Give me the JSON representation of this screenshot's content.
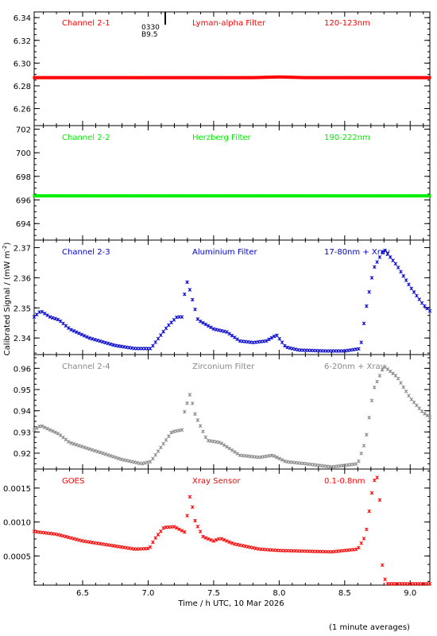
{
  "figure": {
    "ylabel": "Calibrated Signal / (mW m",
    "ylabel_sup": "-2",
    "ylabel_end": ")",
    "xlabel": "Time / h UTC, 10 Mar 2026",
    "footnote": "(1 minute averages)",
    "xlim": [
      6.13,
      9.15
    ],
    "xticks": [
      6.5,
      7.0,
      7.5,
      8.0,
      8.5,
      9.0
    ],
    "xtick_labels": [
      "6.5",
      "7.0",
      "7.5",
      "8.0",
      "8.5",
      "9.0"
    ],
    "marker_annotation": {
      "x": 7.15,
      "line1": "0330",
      "line2": "B9.5"
    }
  },
  "chart_data": [
    {
      "type": "scatter",
      "channel_label": "Channel 2-1",
      "filter_label": "Lyman-alpha Filter",
      "band_label": "120-123nm",
      "color": "#ff0000",
      "ylim": [
        6.245,
        6.345
      ],
      "yticks": [
        6.26,
        6.28,
        6.3,
        6.32,
        6.34
      ],
      "ytick_labels": [
        "6.26",
        "6.28",
        "6.30",
        "6.32",
        "6.34"
      ],
      "profile": [
        [
          6.13,
          6.2872
        ],
        [
          7.8,
          6.2872
        ],
        [
          8.0,
          6.2878
        ],
        [
          8.2,
          6.2872
        ],
        [
          9.15,
          6.2872
        ]
      ]
    },
    {
      "type": "scatter",
      "channel_label": "Channel 2-2",
      "filter_label": "Herzberg Filter",
      "band_label": "190-222nm",
      "color": "#00ee00",
      "ylim": [
        692.6,
        702.3
      ],
      "yticks": [
        694,
        696,
        698,
        700,
        702
      ],
      "ytick_labels": [
        "694",
        "696",
        "698",
        "700",
        "702"
      ],
      "profile": [
        [
          6.13,
          696.35
        ],
        [
          9.15,
          696.35
        ]
      ]
    },
    {
      "type": "scatter",
      "channel_label": "Channel 2-3",
      "filter_label": "Aluminium Filter",
      "band_label": "17-80nm + Xray",
      "color": "#0000cc",
      "ylim": [
        2.3345,
        2.3725
      ],
      "yticks": [
        2.34,
        2.35,
        2.36,
        2.37
      ],
      "ytick_labels": [
        "2.34",
        "2.35",
        "2.36",
        "2.37"
      ],
      "profile": [
        [
          6.13,
          2.347
        ],
        [
          6.18,
          2.349
        ],
        [
          6.25,
          2.347
        ],
        [
          6.32,
          2.346
        ],
        [
          6.4,
          2.343
        ],
        [
          6.55,
          2.34
        ],
        [
          6.75,
          2.3375
        ],
        [
          6.9,
          2.3365
        ],
        [
          7.02,
          2.3365
        ],
        [
          7.08,
          2.34
        ],
        [
          7.15,
          2.344
        ],
        [
          7.22,
          2.347
        ],
        [
          7.26,
          2.347
        ],
        [
          7.27,
          2.353
        ],
        [
          7.3,
          2.359
        ],
        [
          7.33,
          2.354
        ],
        [
          7.38,
          2.346
        ],
        [
          7.5,
          2.343
        ],
        [
          7.6,
          2.342
        ],
        [
          7.7,
          2.339
        ],
        [
          7.8,
          2.3385
        ],
        [
          7.9,
          2.339
        ],
        [
          7.98,
          2.341
        ],
        [
          8.05,
          2.337
        ],
        [
          8.15,
          2.336
        ],
        [
          8.35,
          2.3357
        ],
        [
          8.5,
          2.3357
        ],
        [
          8.62,
          2.3365
        ],
        [
          8.66,
          2.349
        ],
        [
          8.72,
          2.363
        ],
        [
          8.8,
          2.3695
        ],
        [
          8.9,
          2.364
        ],
        [
          9.0,
          2.357
        ],
        [
          9.1,
          2.351
        ],
        [
          9.15,
          2.349
        ]
      ]
    },
    {
      "type": "scatter",
      "channel_label": "Channel 2-4",
      "filter_label": "Zirconium Filter",
      "band_label": "6-20nm + Xray",
      "color": "#888888",
      "ylim": [
        0.9125,
        0.9665
      ],
      "yticks": [
        0.92,
        0.93,
        0.94,
        0.95,
        0.96
      ],
      "ytick_labels": [
        "0.92",
        "0.93",
        "0.94",
        "0.95",
        "0.96"
      ],
      "profile": [
        [
          6.13,
          0.931
        ],
        [
          6.18,
          0.933
        ],
        [
          6.25,
          0.931
        ],
        [
          6.32,
          0.929
        ],
        [
          6.4,
          0.925
        ],
        [
          6.6,
          0.921
        ],
        [
          6.8,
          0.917
        ],
        [
          6.95,
          0.915
        ],
        [
          7.02,
          0.916
        ],
        [
          7.1,
          0.923
        ],
        [
          7.18,
          0.93
        ],
        [
          7.26,
          0.931
        ],
        [
          7.27,
          0.938
        ],
        [
          7.32,
          0.948
        ],
        [
          7.36,
          0.938
        ],
        [
          7.45,
          0.926
        ],
        [
          7.55,
          0.925
        ],
        [
          7.7,
          0.919
        ],
        [
          7.85,
          0.918
        ],
        [
          7.95,
          0.919
        ],
        [
          8.05,
          0.916
        ],
        [
          8.2,
          0.915
        ],
        [
          8.4,
          0.9135
        ],
        [
          8.6,
          0.915
        ],
        [
          8.66,
          0.926
        ],
        [
          8.72,
          0.95
        ],
        [
          8.8,
          0.961
        ],
        [
          8.9,
          0.956
        ],
        [
          9.0,
          0.946
        ],
        [
          9.1,
          0.939
        ],
        [
          9.15,
          0.937
        ]
      ]
    },
    {
      "type": "scatter",
      "channel_label": "GOES",
      "filter_label": "Xray Sensor",
      "band_label": "0.1-0.8nm",
      "color": "#ff0000",
      "ylim": [
        7e-05,
        0.00178
      ],
      "yticks": [
        0.0005,
        0.001,
        0.0015
      ],
      "ytick_labels": [
        "0.0005",
        "0.0010",
        "0.0015"
      ],
      "profile": [
        [
          6.13,
          0.00086
        ],
        [
          6.3,
          0.00082
        ],
        [
          6.5,
          0.00072
        ],
        [
          6.7,
          0.00066
        ],
        [
          6.9,
          0.0006
        ],
        [
          7.01,
          0.00061
        ],
        [
          7.05,
          0.00075
        ],
        [
          7.12,
          0.00092
        ],
        [
          7.2,
          0.00093
        ],
        [
          7.28,
          0.00085
        ],
        [
          7.32,
          0.0014
        ],
        [
          7.36,
          0.001
        ],
        [
          7.42,
          0.00078
        ],
        [
          7.5,
          0.00072
        ],
        [
          7.55,
          0.00076
        ],
        [
          7.65,
          0.00068
        ],
        [
          7.85,
          0.0006
        ],
        [
          8.0,
          0.00058
        ],
        [
          8.2,
          0.00057
        ],
        [
          8.4,
          0.00056
        ],
        [
          8.6,
          0.0006
        ],
        [
          8.66,
          0.0008
        ],
        [
          8.72,
          0.0016
        ],
        [
          8.76,
          0.00168
        ],
        [
          8.79,
          0.00025
        ],
        [
          8.82,
          9e-05
        ],
        [
          9.15,
          9e-05
        ]
      ]
    }
  ]
}
